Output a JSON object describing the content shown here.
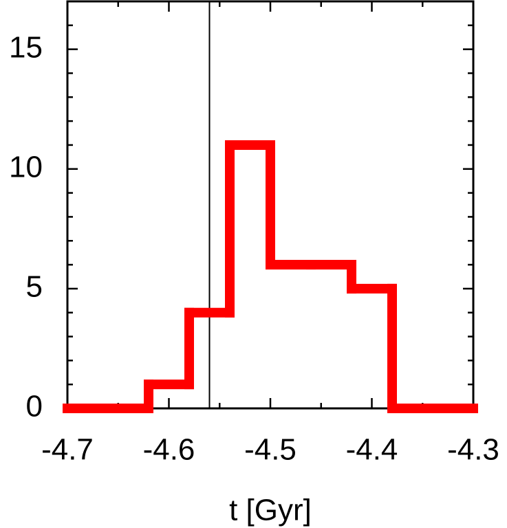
{
  "chart_data": {
    "type": "histogram",
    "xlabel": "t [Gyr]",
    "bins": [
      -4.7,
      -4.66,
      -4.62,
      -4.58,
      -4.54,
      -4.5,
      -4.46,
      -4.42,
      -4.38,
      -4.34,
      -4.3
    ],
    "counts": [
      0,
      0,
      1,
      4,
      11,
      6,
      6,
      5,
      0,
      0
    ],
    "color": "#ff0000",
    "vline": -4.56,
    "xlim": [
      -4.7,
      -4.3
    ],
    "xticks": [
      -4.7,
      -4.6,
      -4.5,
      -4.4,
      -4.3
    ],
    "xminorticks": [
      -4.65,
      -4.55,
      -4.45,
      -4.35
    ],
    "ylim": [
      0,
      17
    ],
    "yticks": [
      0,
      5,
      10,
      15
    ],
    "yminorticks": [
      1,
      2,
      3,
      4,
      6,
      7,
      8,
      9,
      11,
      12,
      13,
      14,
      16,
      17
    ]
  }
}
